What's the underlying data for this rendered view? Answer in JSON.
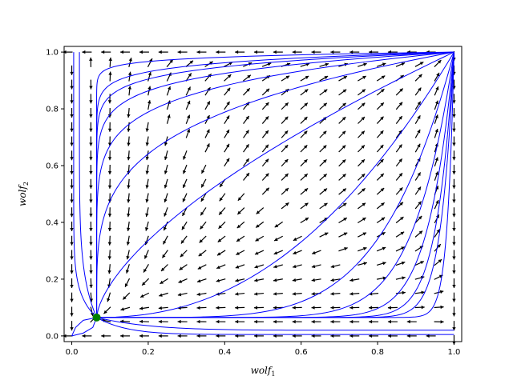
{
  "chart_data": {
    "type": "phase-portrait",
    "title": "",
    "xlabel": "wolf",
    "xlabel_subscript": "1",
    "ylabel": "wolf",
    "ylabel_subscript": "2",
    "xlim": [
      -0.02,
      1.02
    ],
    "ylim": [
      -0.02,
      1.02
    ],
    "xticks": [
      0.0,
      0.2,
      0.4,
      0.6,
      0.8,
      1.0
    ],
    "yticks": [
      0.0,
      0.2,
      0.4,
      0.6,
      0.8,
      1.0
    ],
    "xtick_labels": [
      "0.0",
      "0.2",
      "0.4",
      "0.6",
      "0.8",
      "1.0"
    ],
    "ytick_labels": [
      "0.0",
      "0.2",
      "0.4",
      "0.6",
      "0.8",
      "1.0"
    ],
    "grid": false,
    "quiver_grid_step": 0.05,
    "equilibrium_point": {
      "x": 0.065,
      "y": 0.065,
      "color": "#008000"
    },
    "attractor_point": {
      "x": 1.0,
      "y": 1.0
    },
    "arrow_color": "#000000",
    "trajectory_color": "#0000ff",
    "trajectory_starts": [
      [
        0.0,
        1.0
      ],
      [
        0.0,
        0.0
      ],
      [
        1.0,
        0.0
      ],
      [
        0.07,
        0.2
      ],
      [
        0.07,
        0.35
      ],
      [
        0.07,
        0.5
      ],
      [
        0.07,
        0.65
      ],
      [
        0.07,
        0.8
      ],
      [
        0.07,
        0.92
      ],
      [
        0.2,
        0.07
      ],
      [
        0.35,
        0.07
      ],
      [
        0.5,
        0.07
      ],
      [
        0.65,
        0.07
      ],
      [
        0.8,
        0.07
      ],
      [
        0.92,
        0.07
      ],
      [
        0.1,
        0.1
      ],
      [
        0.12,
        0.15
      ],
      [
        0.15,
        0.12
      ]
    ]
  }
}
